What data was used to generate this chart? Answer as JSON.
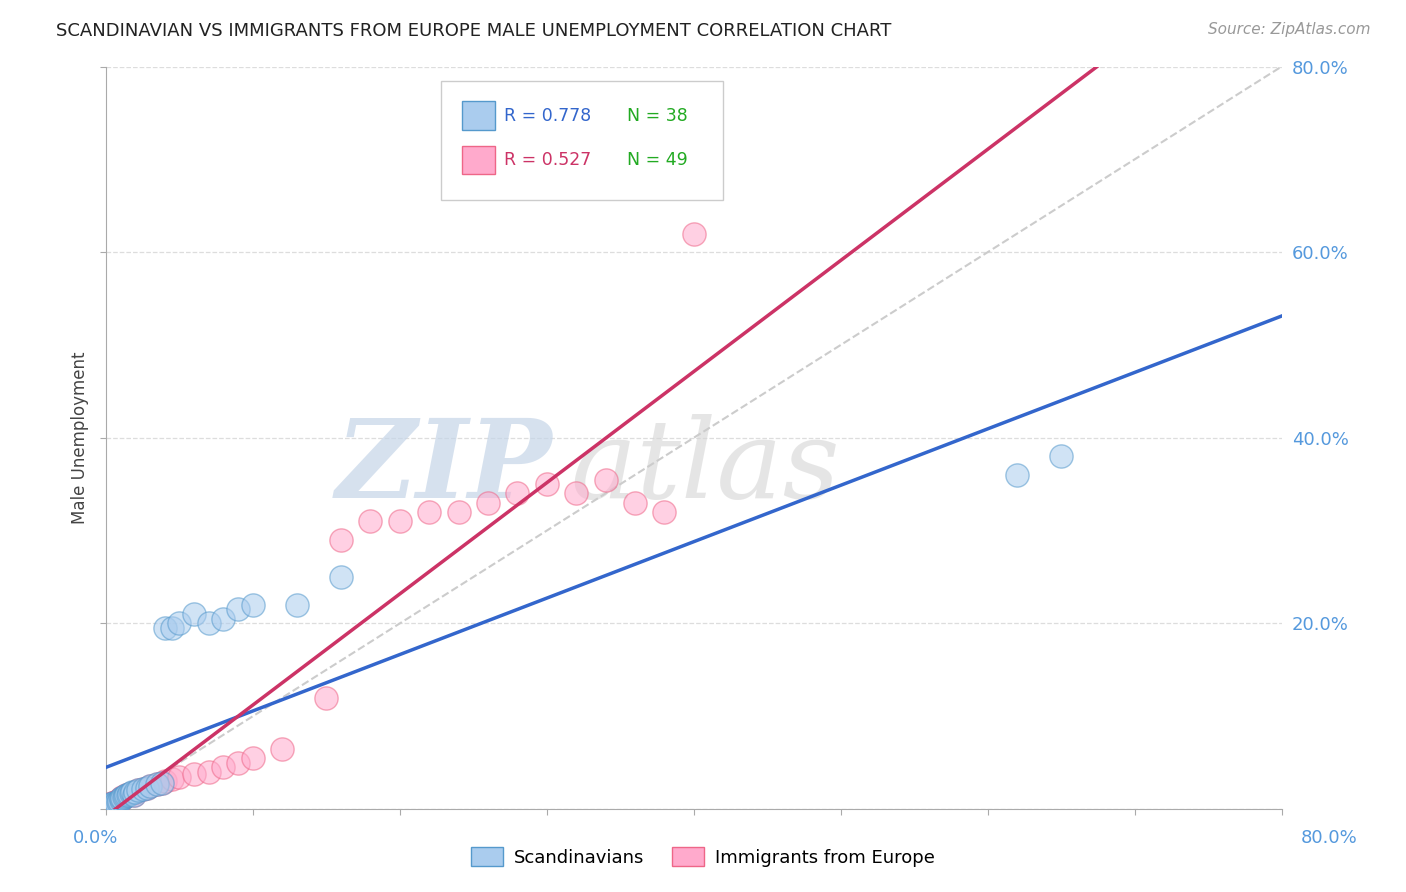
{
  "title": "SCANDINAVIAN VS IMMIGRANTS FROM EUROPE MALE UNEMPLOYMENT CORRELATION CHART",
  "source_text": "Source: ZipAtlas.com",
  "ylabel": "Male Unemployment",
  "xlim": [
    0.0,
    0.8
  ],
  "ylim": [
    0.0,
    0.8
  ],
  "yticks": [
    0.0,
    0.2,
    0.4,
    0.6,
    0.8
  ],
  "ytick_labels": [
    "",
    "20.0%",
    "40.0%",
    "60.0%",
    "80.0%"
  ],
  "xticks": [
    0.0,
    0.1,
    0.2,
    0.3,
    0.4,
    0.5,
    0.6,
    0.7,
    0.8
  ],
  "blue_face": "#aaccee",
  "blue_edge": "#5599cc",
  "pink_face": "#ffaacc",
  "pink_edge": "#ee6688",
  "blue_line": "#3366cc",
  "pink_line": "#cc3366",
  "diag_color": "#cccccc",
  "tick_label_color": "#5599dd",
  "n_color": "#22aa22",
  "legend_r1": "R = 0.778",
  "legend_n1": "N = 38",
  "legend_r2": "R = 0.527",
  "legend_n2": "N = 49",
  "scandinavian_x": [
    0.002,
    0.003,
    0.004,
    0.005,
    0.006,
    0.007,
    0.008,
    0.009,
    0.01,
    0.01,
    0.011,
    0.012,
    0.013,
    0.014,
    0.015,
    0.016,
    0.017,
    0.018,
    0.019,
    0.02,
    0.022,
    0.025,
    0.028,
    0.03,
    0.035,
    0.038,
    0.04,
    0.045,
    0.05,
    0.06,
    0.07,
    0.08,
    0.09,
    0.1,
    0.13,
    0.16,
    0.62,
    0.65
  ],
  "scandinavian_y": [
    0.003,
    0.005,
    0.005,
    0.006,
    0.007,
    0.007,
    0.008,
    0.009,
    0.01,
    0.012,
    0.012,
    0.013,
    0.014,
    0.015,
    0.015,
    0.016,
    0.017,
    0.018,
    0.015,
    0.018,
    0.02,
    0.022,
    0.023,
    0.025,
    0.027,
    0.028,
    0.195,
    0.195,
    0.2,
    0.21,
    0.2,
    0.205,
    0.215,
    0.22,
    0.22,
    0.25,
    0.36,
    0.38
  ],
  "immigrant_x": [
    0.002,
    0.003,
    0.004,
    0.005,
    0.006,
    0.007,
    0.008,
    0.009,
    0.01,
    0.01,
    0.011,
    0.012,
    0.013,
    0.014,
    0.015,
    0.016,
    0.017,
    0.018,
    0.019,
    0.02,
    0.022,
    0.025,
    0.028,
    0.03,
    0.035,
    0.038,
    0.04,
    0.045,
    0.05,
    0.06,
    0.07,
    0.08,
    0.09,
    0.1,
    0.12,
    0.15,
    0.16,
    0.18,
    0.2,
    0.22,
    0.24,
    0.26,
    0.28,
    0.3,
    0.32,
    0.34,
    0.36,
    0.38,
    0.4
  ],
  "immigrant_y": [
    0.003,
    0.005,
    0.006,
    0.007,
    0.008,
    0.008,
    0.009,
    0.01,
    0.01,
    0.012,
    0.013,
    0.013,
    0.014,
    0.015,
    0.015,
    0.016,
    0.016,
    0.017,
    0.015,
    0.018,
    0.02,
    0.022,
    0.023,
    0.025,
    0.027,
    0.028,
    0.03,
    0.032,
    0.035,
    0.038,
    0.04,
    0.045,
    0.05,
    0.055,
    0.065,
    0.12,
    0.29,
    0.31,
    0.31,
    0.32,
    0.32,
    0.33,
    0.34,
    0.35,
    0.34,
    0.355,
    0.33,
    0.32,
    0.62
  ]
}
